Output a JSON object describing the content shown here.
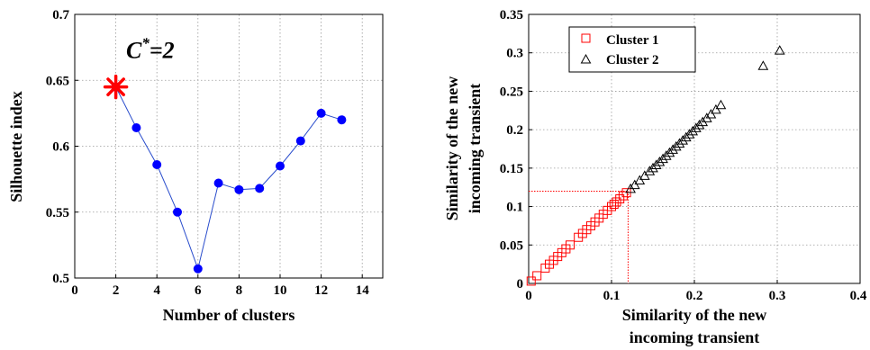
{
  "chart_data": [
    {
      "type": "line",
      "xlabel": "Number of clusters",
      "ylabel": "Silhouette index",
      "xlim": [
        0,
        15
      ],
      "ylim": [
        0.5,
        0.7
      ],
      "xticks": [
        "0",
        "2",
        "4",
        "6",
        "8",
        "10",
        "12",
        "14"
      ],
      "yticks": [
        "0.5",
        "0.55",
        "0.6",
        "0.65",
        "0.7"
      ],
      "grid": true,
      "series": [
        {
          "x": [
            2,
            3,
            4,
            5,
            6,
            7,
            8,
            9,
            10,
            11,
            12,
            13
          ],
          "values": [
            0.645,
            0.614,
            0.586,
            0.55,
            0.507,
            0.572,
            0.567,
            0.568,
            0.585,
            0.604,
            0.625,
            0.62
          ],
          "color": "#2a4dcc",
          "marker_color": "#0000ff"
        }
      ],
      "highlight": {
        "x": 2,
        "y": 0.645,
        "marker": "asterisk",
        "color": "#ff0000"
      },
      "annotation": {
        "base": "C",
        "superscript": "*",
        "rest": "=2",
        "x": 2.5,
        "y": 0.667
      }
    },
    {
      "type": "scatter",
      "xlabel": [
        "Similarity of the new",
        "incoming transient"
      ],
      "ylabel": [
        "Similarity of the new",
        "incoming transient"
      ],
      "xlim": [
        0,
        0.4
      ],
      "ylim": [
        0,
        0.35
      ],
      "xticks": [
        "0",
        "0.1",
        "0.2",
        "0.3",
        "0.4"
      ],
      "yticks": [
        "0",
        "0.05",
        "0.1",
        "0.15",
        "0.2",
        "0.25",
        "0.3",
        "0.35"
      ],
      "grid": true,
      "legend_position": "top-left",
      "series": [
        {
          "name": "Cluster 1",
          "marker": "square",
          "color": "#ff0000",
          "x": [
            0.003,
            0.01,
            0.02,
            0.025,
            0.03,
            0.035,
            0.04,
            0.045,
            0.05,
            0.06,
            0.065,
            0.07,
            0.075,
            0.08,
            0.085,
            0.09,
            0.095,
            0.1,
            0.103,
            0.106,
            0.11,
            0.114,
            0.118
          ],
          "y": [
            0.003,
            0.01,
            0.02,
            0.025,
            0.03,
            0.035,
            0.04,
            0.045,
            0.05,
            0.06,
            0.065,
            0.07,
            0.075,
            0.08,
            0.085,
            0.09,
            0.095,
            0.1,
            0.103,
            0.106,
            0.11,
            0.114,
            0.118
          ]
        },
        {
          "name": "Cluster 2",
          "marker": "triangle",
          "color": "#000000",
          "x": [
            0.123,
            0.128,
            0.134,
            0.14,
            0.146,
            0.15,
            0.154,
            0.158,
            0.162,
            0.166,
            0.17,
            0.174,
            0.178,
            0.182,
            0.186,
            0.19,
            0.194,
            0.198,
            0.202,
            0.206,
            0.21,
            0.215,
            0.22,
            0.226,
            0.232,
            0.283,
            0.303
          ],
          "y": [
            0.123,
            0.128,
            0.134,
            0.14,
            0.146,
            0.15,
            0.154,
            0.158,
            0.162,
            0.166,
            0.17,
            0.174,
            0.178,
            0.182,
            0.186,
            0.19,
            0.194,
            0.198,
            0.202,
            0.206,
            0.21,
            0.215,
            0.22,
            0.226,
            0.232,
            0.283,
            0.303
          ]
        }
      ],
      "reference_lines": {
        "x": 0.12,
        "y": 0.12,
        "color": "#ff0000"
      }
    }
  ]
}
